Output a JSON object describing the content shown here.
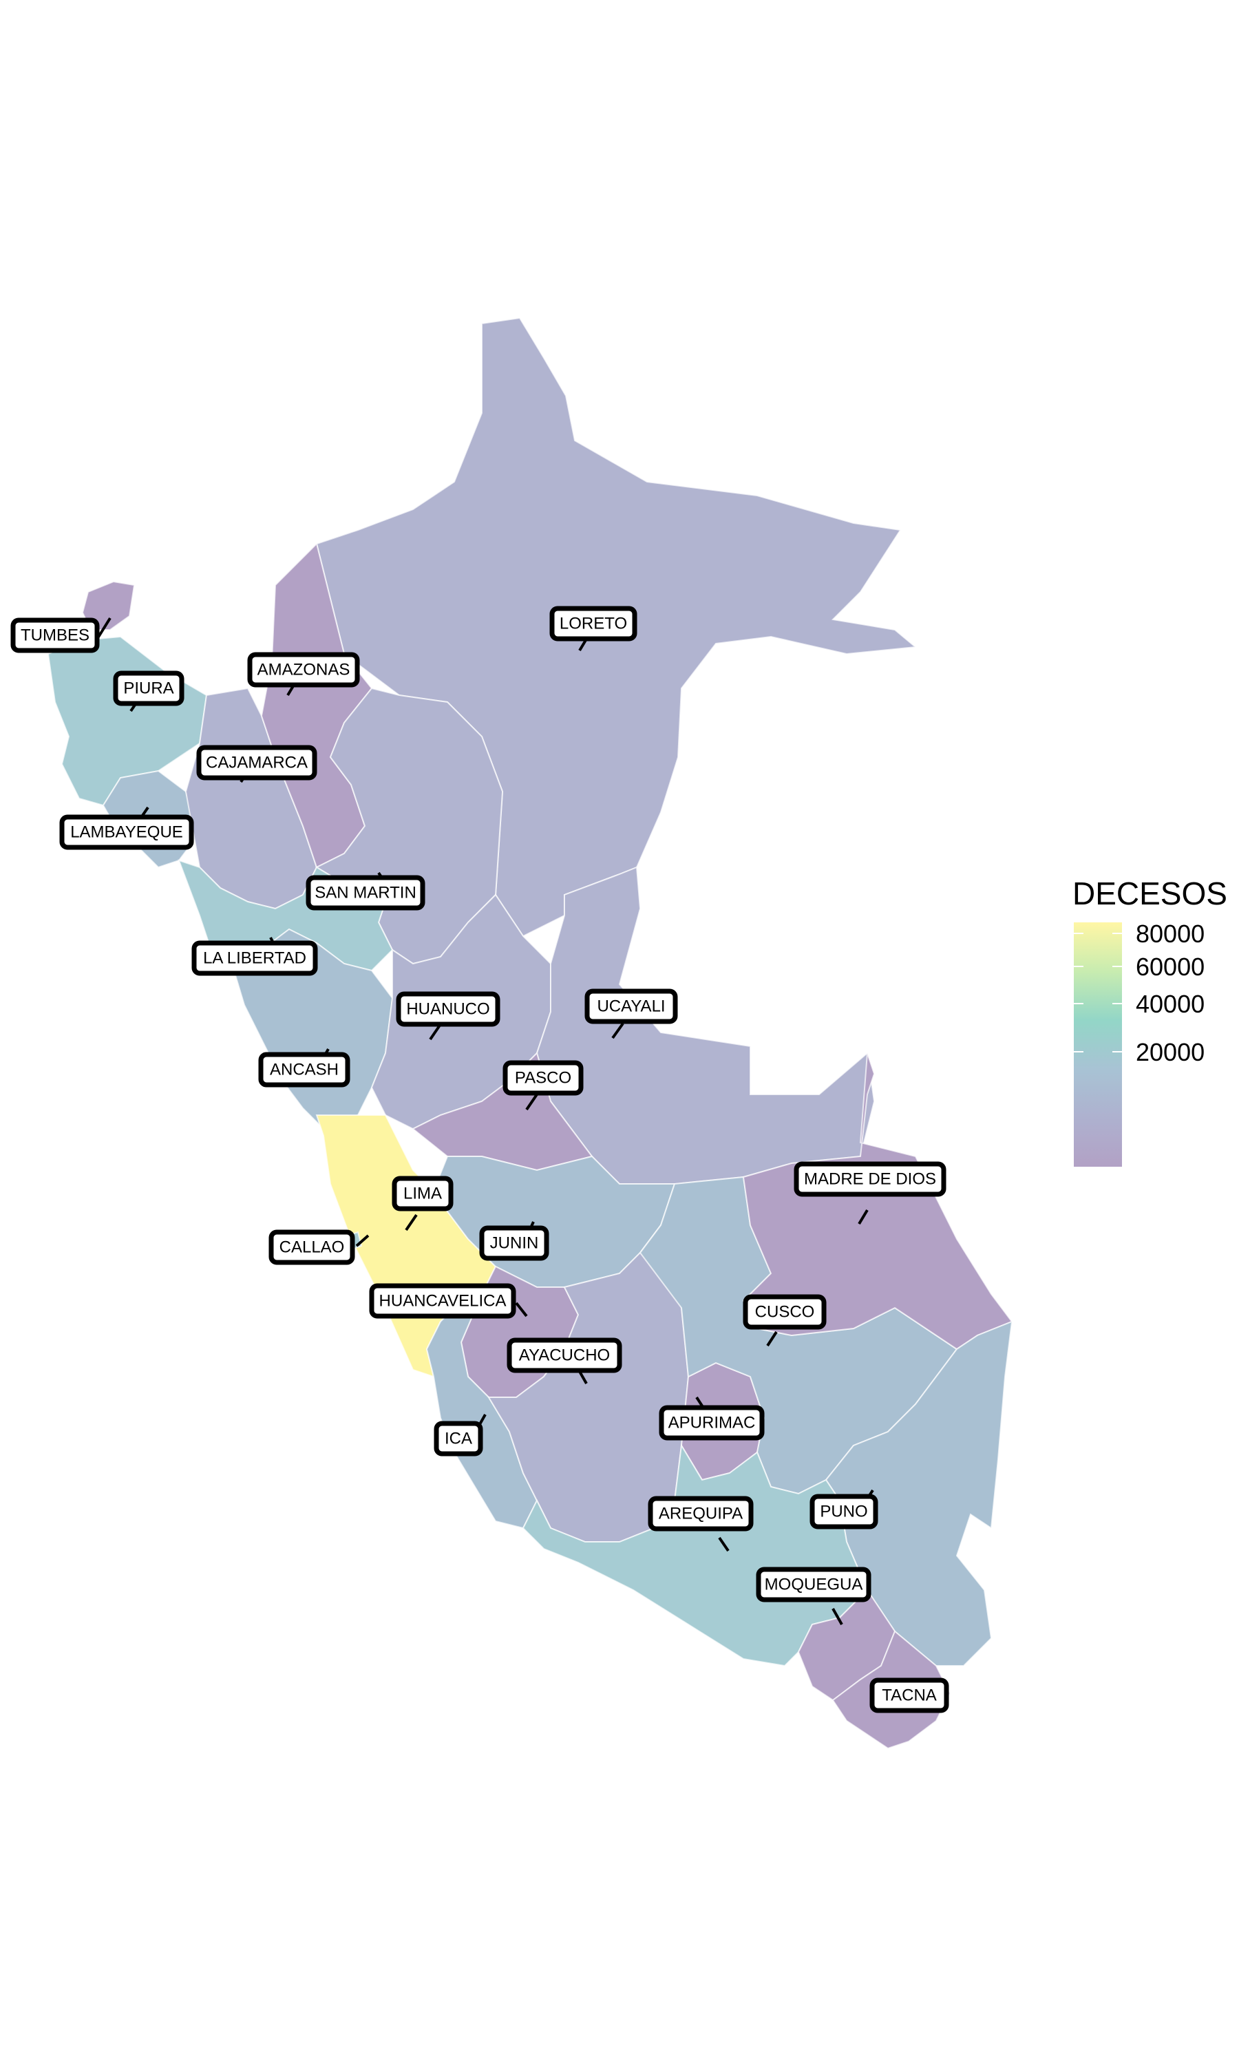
{
  "legend": {
    "title": "DECESOS",
    "ticks": [
      "80000",
      "60000",
      "40000",
      "20000"
    ],
    "gradient_colors": [
      "#fff6a5",
      "#c8ecb0",
      "#93d6c7",
      "#a8c3d4",
      "#aeb1cf",
      "#b2a1c5"
    ]
  },
  "colors": {
    "low": "#b2a1c5",
    "low_mid": "#b1b4d0",
    "mid": "#a9c0d2",
    "mid_high": "#a6ccd3",
    "high": "#fdf5a2",
    "border": "#ffffff"
  },
  "departments": [
    {
      "name": "TUMBES",
      "fill": "#b2a1c5"
    },
    {
      "name": "PIURA",
      "fill": "#a6ccd3"
    },
    {
      "name": "LAMBAYEQUE",
      "fill": "#a9c0d2"
    },
    {
      "name": "CAJAMARCA",
      "fill": "#b1b4d0"
    },
    {
      "name": "AMAZONAS",
      "fill": "#b2a1c5"
    },
    {
      "name": "LORETO",
      "fill": "#b1b4d0"
    },
    {
      "name": "SAN MARTIN",
      "fill": "#b1b4d0"
    },
    {
      "name": "LA LIBERTAD",
      "fill": "#a6ccd3"
    },
    {
      "name": "ANCASH",
      "fill": "#a9c0d2"
    },
    {
      "name": "HUANUCO",
      "fill": "#b1b4d0"
    },
    {
      "name": "UCAYALI",
      "fill": "#b1b4d0"
    },
    {
      "name": "PASCO",
      "fill": "#b2a1c5"
    },
    {
      "name": "LIMA",
      "fill": "#fdf5a2"
    },
    {
      "name": "CALLAO",
      "fill": "#a6ccd3"
    },
    {
      "name": "JUNIN",
      "fill": "#a9c0d2"
    },
    {
      "name": "HUANCAVELICA",
      "fill": "#b2a1c5"
    },
    {
      "name": "AYACUCHO",
      "fill": "#b1b4d0"
    },
    {
      "name": "ICA",
      "fill": "#a9c0d2"
    },
    {
      "name": "APURIMAC",
      "fill": "#b2a1c5"
    },
    {
      "name": "CUSCO",
      "fill": "#a9c0d2"
    },
    {
      "name": "MADRE DE DIOS",
      "fill": "#b2a1c5"
    },
    {
      "name": "AREQUIPA",
      "fill": "#a6ccd3"
    },
    {
      "name": "PUNO",
      "fill": "#a9c0d2"
    },
    {
      "name": "MOQUEGUA",
      "fill": "#b2a1c5"
    },
    {
      "name": "TACNA",
      "fill": "#b2a1c5"
    }
  ]
}
